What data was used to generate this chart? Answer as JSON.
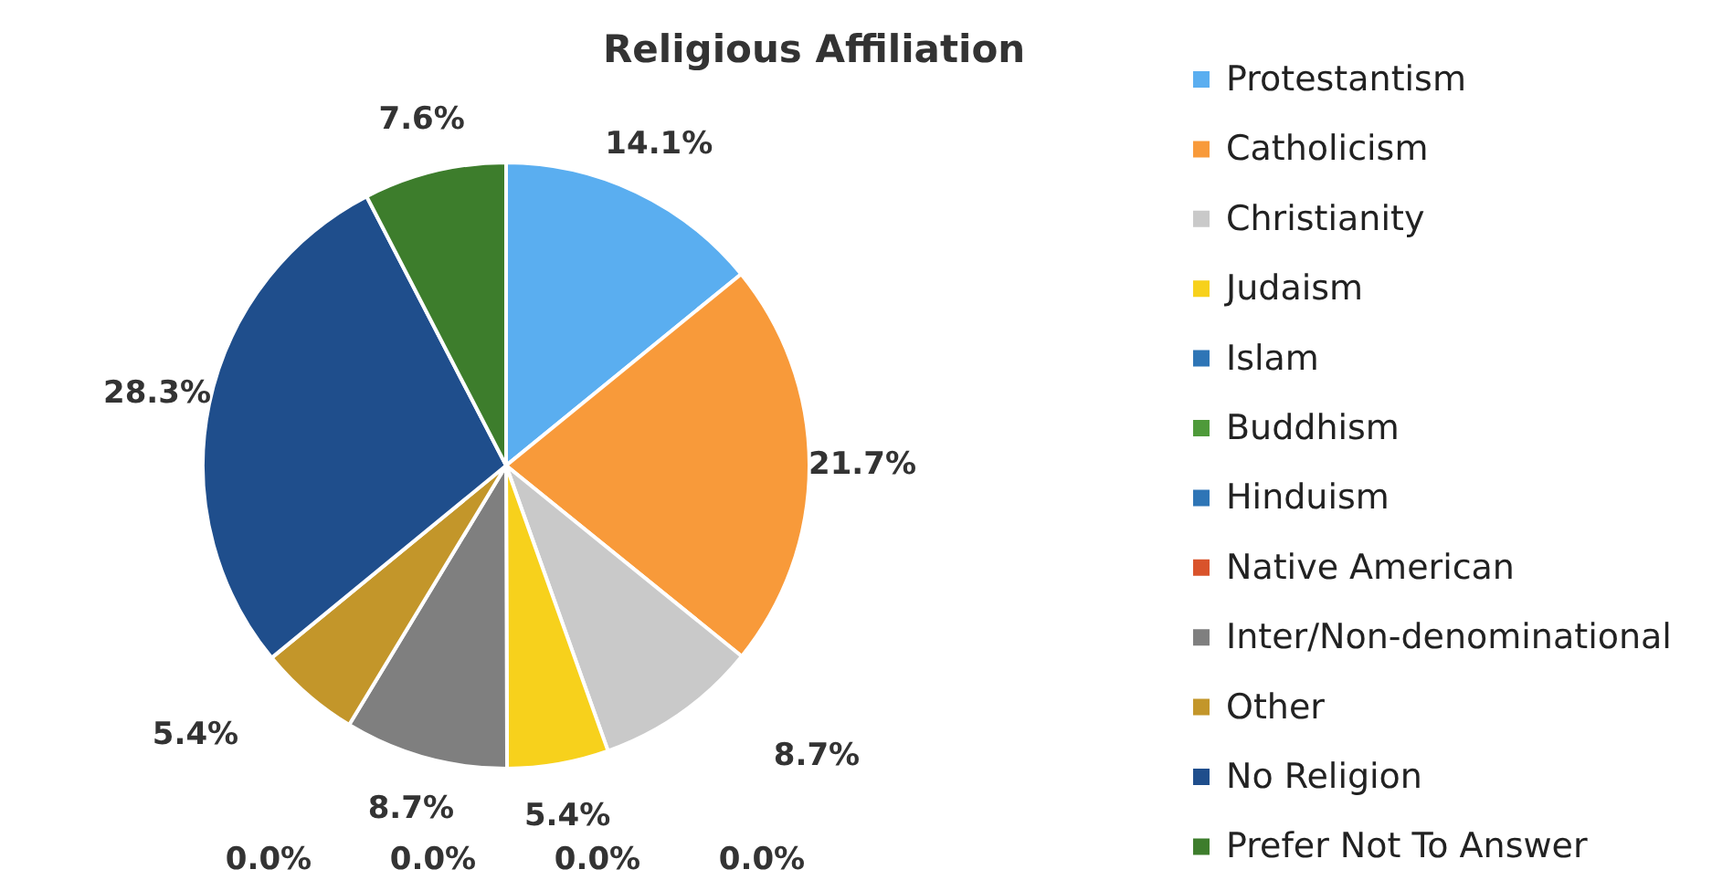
{
  "chart_data": {
    "type": "pie",
    "title": "Religious Affiliation",
    "categories": [
      "Protestantism",
      "Catholicism",
      "Christianity",
      "Judaism",
      "Islam",
      "Buddhism",
      "Hinduism",
      "Native American",
      "Inter/Non-denominational",
      "Other",
      "No Religion",
      "Prefer Not To Answer"
    ],
    "values": [
      14.1,
      21.7,
      8.7,
      5.4,
      0.0,
      0.0,
      0.0,
      0.0,
      8.7,
      5.4,
      28.3,
      7.6
    ],
    "colors": [
      "#5aaef0",
      "#f89a3a",
      "#c9c9c9",
      "#f7d11c",
      "#2e75b6",
      "#4e9a3a",
      "#2e75b6",
      "#d9532b",
      "#7f7f7f",
      "#c3962a",
      "#1f4e8c",
      "#3d7d2c"
    ],
    "value_labels": [
      "14.1%",
      "21.7%",
      "8.7%",
      "5.4%",
      "0.0%",
      "0.0%",
      "0.0%",
      "0.0%",
      "8.7%",
      "5.4%",
      "28.3%",
      "7.6%"
    ],
    "legend": "right"
  }
}
